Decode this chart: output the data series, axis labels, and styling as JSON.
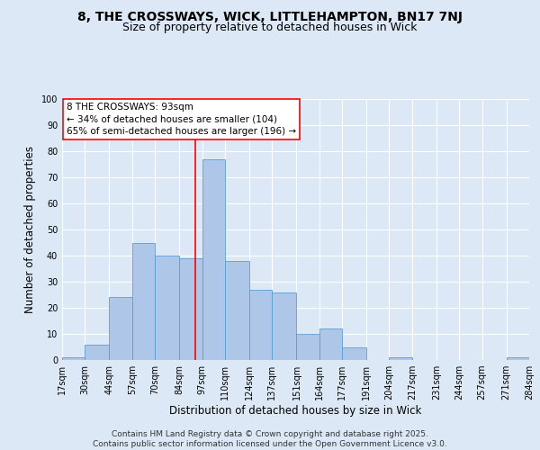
{
  "title_line1": "8, THE CROSSWAYS, WICK, LITTLEHAMPTON, BN17 7NJ",
  "title_line2": "Size of property relative to detached houses in Wick",
  "xlabel": "Distribution of detached houses by size in Wick",
  "ylabel": "Number of detached properties",
  "bar_edges": [
    17,
    30,
    44,
    57,
    70,
    84,
    97,
    110,
    124,
    137,
    151,
    164,
    177,
    191,
    204,
    217,
    231,
    244,
    257,
    271,
    284
  ],
  "bar_heights": [
    1,
    6,
    24,
    45,
    40,
    39,
    77,
    38,
    27,
    26,
    10,
    12,
    5,
    0,
    1,
    0,
    0,
    0,
    0,
    1
  ],
  "bar_color": "#aec6e8",
  "bar_edge_color": "#5a9fd4",
  "vline_x": 93,
  "vline_color": "red",
  "annotation_text": "8 THE CROSSWAYS: 93sqm\n← 34% of detached houses are smaller (104)\n65% of semi-detached houses are larger (196) →",
  "annotation_box_color": "white",
  "annotation_box_edge": "red",
  "background_color": "#dce8f5",
  "plot_bg_color": "#dce8f5",
  "ylim": [
    0,
    100
  ],
  "yticks": [
    0,
    10,
    20,
    30,
    40,
    50,
    60,
    70,
    80,
    90,
    100
  ],
  "tick_labels": [
    "17sqm",
    "30sqm",
    "44sqm",
    "57sqm",
    "70sqm",
    "84sqm",
    "97sqm",
    "110sqm",
    "124sqm",
    "137sqm",
    "151sqm",
    "164sqm",
    "177sqm",
    "191sqm",
    "204sqm",
    "217sqm",
    "231sqm",
    "244sqm",
    "257sqm",
    "271sqm",
    "284sqm"
  ],
  "footer_text": "Contains HM Land Registry data © Crown copyright and database right 2025.\nContains public sector information licensed under the Open Government Licence v3.0.",
  "grid_color": "white",
  "title_fontsize": 10,
  "subtitle_fontsize": 9,
  "axis_label_fontsize": 8.5,
  "tick_fontsize": 7,
  "annotation_fontsize": 7.5,
  "footer_fontsize": 6.5
}
